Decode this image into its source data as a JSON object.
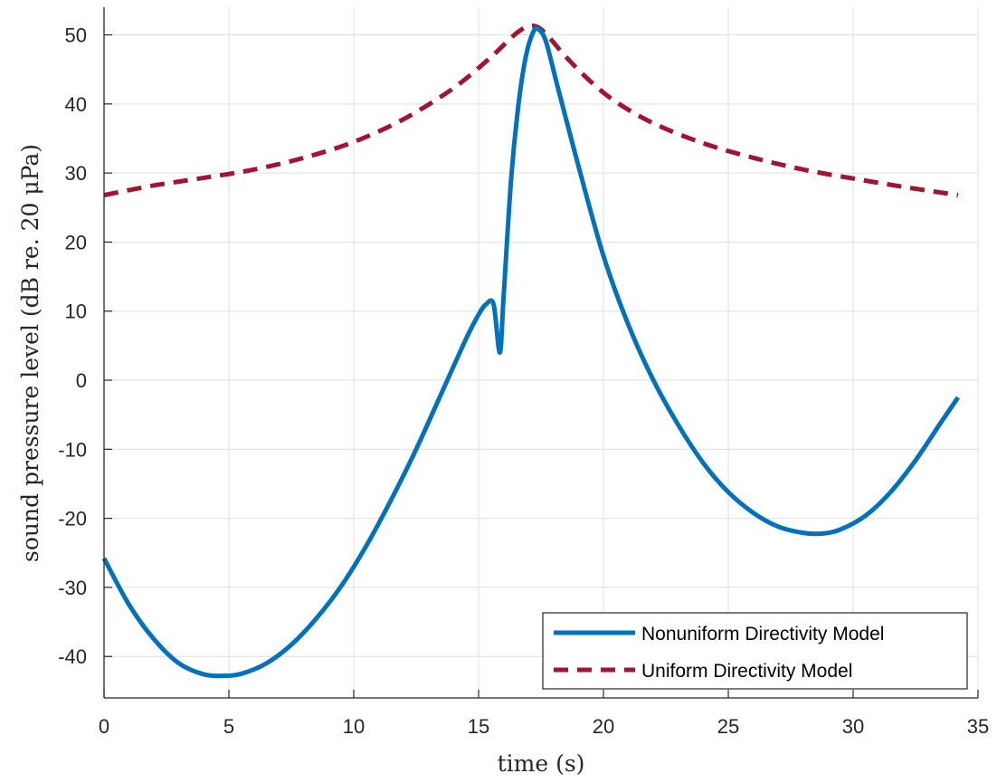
{
  "chart_data": {
    "type": "line",
    "title": "",
    "xlabel": "time (s)",
    "ylabel": "sound pressure level (dB re. 20 μPa)",
    "xlim": [
      0,
      35
    ],
    "ylim": [
      -46,
      54
    ],
    "xticks": [
      0,
      5,
      10,
      15,
      20,
      25,
      30,
      35
    ],
    "yticks": [
      -40,
      -30,
      -20,
      -10,
      0,
      10,
      20,
      30,
      40,
      50
    ],
    "xtick_labels": [
      "0",
      "5",
      "10",
      "15",
      "20",
      "25",
      "30",
      "35"
    ],
    "ytick_labels": [
      "-40",
      "-30",
      "-20",
      "-10",
      "0",
      "10",
      "20",
      "30",
      "40",
      "50"
    ],
    "grid": true,
    "legend_position": "bottom-right",
    "series": [
      {
        "name": "Nonuniform Directivity Model",
        "color": "#0072BD",
        "style": "solid",
        "points": [
          [
            0,
            -25.8
          ],
          [
            1,
            -32.5
          ],
          [
            2,
            -37.5
          ],
          [
            3,
            -41
          ],
          [
            4,
            -42.6
          ],
          [
            4.8,
            -42.8
          ],
          [
            5.5,
            -42.5
          ],
          [
            6.5,
            -41
          ],
          [
            7.5,
            -38.3
          ],
          [
            8.5,
            -34.5
          ],
          [
            9.5,
            -29.8
          ],
          [
            10.5,
            -24
          ],
          [
            11.5,
            -17.3
          ],
          [
            12.5,
            -10
          ],
          [
            13.5,
            -2
          ],
          [
            14.5,
            6
          ],
          [
            15,
            9.5
          ],
          [
            15.3,
            11
          ],
          [
            15.6,
            11
          ],
          [
            15.85,
            4
          ],
          [
            16,
            12
          ],
          [
            16.3,
            29
          ],
          [
            16.6,
            40
          ],
          [
            16.9,
            47
          ],
          [
            17.2,
            50.5
          ],
          [
            17.4,
            50.8
          ],
          [
            17.7,
            49
          ],
          [
            18.2,
            42
          ],
          [
            19,
            31
          ],
          [
            20,
            18
          ],
          [
            21,
            8
          ],
          [
            22,
            0
          ],
          [
            23,
            -6.5
          ],
          [
            24,
            -12
          ],
          [
            25,
            -16.2
          ],
          [
            26,
            -19.2
          ],
          [
            27,
            -21.2
          ],
          [
            28,
            -22.1
          ],
          [
            28.8,
            -22.2
          ],
          [
            29.5,
            -21.6
          ],
          [
            30.5,
            -19.6
          ],
          [
            31.5,
            -16.2
          ],
          [
            32.5,
            -11.6
          ],
          [
            33.5,
            -6.2
          ],
          [
            34.2,
            -2.5
          ]
        ]
      },
      {
        "name": "Uniform Directivity Model",
        "color": "#A2142F",
        "style": "dashed",
        "points": [
          [
            0,
            26.8
          ],
          [
            2,
            28.2
          ],
          [
            4,
            29.3
          ],
          [
            6,
            30.5
          ],
          [
            8,
            32.2
          ],
          [
            10,
            34.5
          ],
          [
            12,
            37.8
          ],
          [
            14,
            42.3
          ],
          [
            15.5,
            46.8
          ],
          [
            16.5,
            50.2
          ],
          [
            17.1,
            51.3
          ],
          [
            17.6,
            50.5
          ],
          [
            18.5,
            46.8
          ],
          [
            19.5,
            43.2
          ],
          [
            20.5,
            40.3
          ],
          [
            22,
            37.2
          ],
          [
            24,
            34.3
          ],
          [
            26,
            32.2
          ],
          [
            28,
            30.5
          ],
          [
            30,
            29.2
          ],
          [
            32,
            28
          ],
          [
            34.2,
            26.8
          ]
        ]
      }
    ]
  }
}
